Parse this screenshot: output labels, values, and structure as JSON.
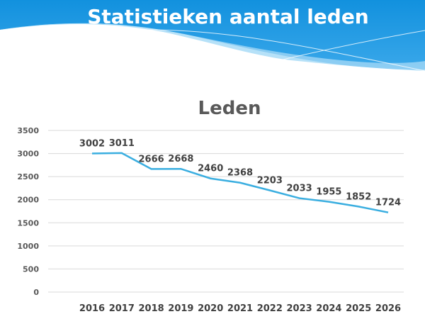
{
  "slide": {
    "title": "Statistieken aantal leden",
    "colors": {
      "header_blue": "#1a96e0",
      "wave_light": "#8fd0f5",
      "line": "#3aaee0"
    }
  },
  "chart_data": {
    "type": "line",
    "title": "Leden",
    "xlabel": "",
    "ylabel": "",
    "categories": [
      "2016",
      "2017",
      "2018",
      "2019",
      "2020",
      "2021",
      "2022",
      "2023",
      "2024",
      "2025",
      "2026"
    ],
    "series": [
      {
        "values": [
          3002,
          3011,
          2666,
          2668,
          2460,
          2368,
          2203,
          2033,
          1955,
          1852,
          1724
        ]
      }
    ],
    "yticks": [
      0,
      500,
      1000,
      1500,
      2000,
      2500,
      3000,
      3500
    ],
    "ylim": [
      0,
      3500
    ],
    "grid": true,
    "data_labels": true,
    "legend": "none"
  }
}
